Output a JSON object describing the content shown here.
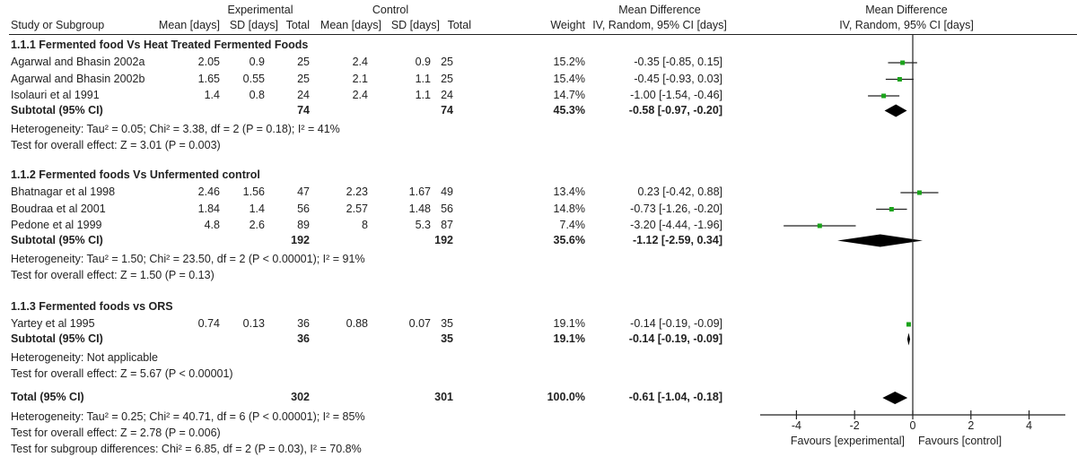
{
  "chart_data": {
    "type": "forest",
    "headers": {
      "experimental": "Experimental",
      "control": "Control",
      "study": "Study or Subgroup",
      "mean": "Mean [days]",
      "sd": "SD [days]",
      "total": "Total",
      "weight": "Weight",
      "md": "Mean Difference",
      "md_method": "IV, Random, 95% CI [days]"
    },
    "groups": [
      {
        "title": "1.1.1 Fermented food Vs Heat Treated Fermented Foods",
        "studies": [
          {
            "name": "Agarwal and Bhasin 2002a",
            "e_mean": "2.05",
            "e_sd": "0.9",
            "e_n": "25",
            "c_mean": "2.4",
            "c_sd": "0.9",
            "c_n": "25",
            "weight": "15.2%",
            "ci_text": "-0.35 [-0.85, 0.15]",
            "md": -0.35,
            "lo": -0.85,
            "hi": 0.15
          },
          {
            "name": "Agarwal and Bhasin 2002b",
            "e_mean": "1.65",
            "e_sd": "0.55",
            "e_n": "25",
            "c_mean": "2.1",
            "c_sd": "1.1",
            "c_n": "25",
            "weight": "15.4%",
            "ci_text": "-0.45 [-0.93, 0.03]",
            "md": -0.45,
            "lo": -0.93,
            "hi": 0.03
          },
          {
            "name": "Isolauri et al 1991",
            "e_mean": "1.4",
            "e_sd": "0.8",
            "e_n": "24",
            "c_mean": "2.4",
            "c_sd": "1.1",
            "c_n": "24",
            "weight": "14.7%",
            "ci_text": "-1.00 [-1.54, -0.46]",
            "md": -1.0,
            "lo": -1.54,
            "hi": -0.46
          }
        ],
        "subtotal": {
          "label": "Subtotal (95% CI)",
          "e_n": "74",
          "c_n": "74",
          "weight": "45.3%",
          "ci_text": "-0.58 [-0.97, -0.20]",
          "md": -0.58,
          "lo": -0.97,
          "hi": -0.2
        },
        "heterogeneity": "Heterogeneity: Tau² = 0.05; Chi² = 3.38, df = 2 (P = 0.18); I² = 41%",
        "overall": "Test for overall effect: Z = 3.01 (P = 0.003)"
      },
      {
        "title": "1.1.2 Fermented foods Vs Unfermented control",
        "studies": [
          {
            "name": "Bhatnagar et al 1998",
            "e_mean": "2.46",
            "e_sd": "1.56",
            "e_n": "47",
            "c_mean": "2.23",
            "c_sd": "1.67",
            "c_n": "49",
            "weight": "13.4%",
            "ci_text": "0.23 [-0.42, 0.88]",
            "md": 0.23,
            "lo": -0.42,
            "hi": 0.88
          },
          {
            "name": "Boudraa et al 2001",
            "e_mean": "1.84",
            "e_sd": "1.4",
            "e_n": "56",
            "c_mean": "2.57",
            "c_sd": "1.48",
            "c_n": "56",
            "weight": "14.8%",
            "ci_text": "-0.73 [-1.26, -0.20]",
            "md": -0.73,
            "lo": -1.26,
            "hi": -0.2
          },
          {
            "name": "Pedone et al 1999",
            "e_mean": "4.8",
            "e_sd": "2.6",
            "e_n": "89",
            "c_mean": "8",
            "c_sd": "5.3",
            "c_n": "87",
            "weight": "7.4%",
            "ci_text": "-3.20 [-4.44, -1.96]",
            "md": -3.2,
            "lo": -4.44,
            "hi": -1.96
          }
        ],
        "subtotal": {
          "label": "Subtotal (95% CI)",
          "e_n": "192",
          "c_n": "192",
          "weight": "35.6%",
          "ci_text": "-1.12 [-2.59, 0.34]",
          "md": -1.12,
          "lo": -2.59,
          "hi": 0.34
        },
        "heterogeneity": "Heterogeneity: Tau² = 1.50; Chi² = 23.50, df = 2 (P < 0.00001); I² = 91%",
        "overall": "Test for overall effect: Z = 1.50 (P = 0.13)"
      },
      {
        "title": "1.1.3 Fermented foods vs ORS",
        "studies": [
          {
            "name": "Yartey et al 1995",
            "e_mean": "0.74",
            "e_sd": "0.13",
            "e_n": "36",
            "c_mean": "0.88",
            "c_sd": "0.07",
            "c_n": "35",
            "weight": "19.1%",
            "ci_text": "-0.14 [-0.19, -0.09]",
            "md": -0.14,
            "lo": -0.19,
            "hi": -0.09
          }
        ],
        "subtotal": {
          "label": "Subtotal (95% CI)",
          "e_n": "36",
          "c_n": "35",
          "weight": "19.1%",
          "ci_text": "-0.14 [-0.19, -0.09]",
          "md": -0.14,
          "lo": -0.19,
          "hi": -0.09
        },
        "heterogeneity": "Heterogeneity: Not applicable",
        "overall": "Test for overall effect: Z = 5.67 (P < 0.00001)"
      }
    ],
    "total": {
      "label": "Total (95% CI)",
      "e_n": "302",
      "c_n": "301",
      "weight": "100.0%",
      "ci_text": "-0.61 [-1.04, -0.18]",
      "md": -0.61,
      "lo": -1.04,
      "hi": -0.18
    },
    "footer": [
      "Heterogeneity: Tau² = 0.25; Chi² = 40.71, df = 6 (P < 0.00001); I² = 85%",
      "Test for overall effect: Z = 2.78 (P = 0.006)",
      "Test for subgroup differences: Chi² = 6.85, df = 2 (P = 0.03), I² = 70.8%"
    ],
    "xlim": [
      -5,
      5
    ],
    "xticks": [
      "-4",
      "-2",
      "0",
      "2",
      "4"
    ],
    "xlabel_left": "Favours [experimental]",
    "xlabel_right": "Favours [control]",
    "colors": {
      "study_marker": "#1aa31a",
      "diamond": "#000000"
    }
  }
}
